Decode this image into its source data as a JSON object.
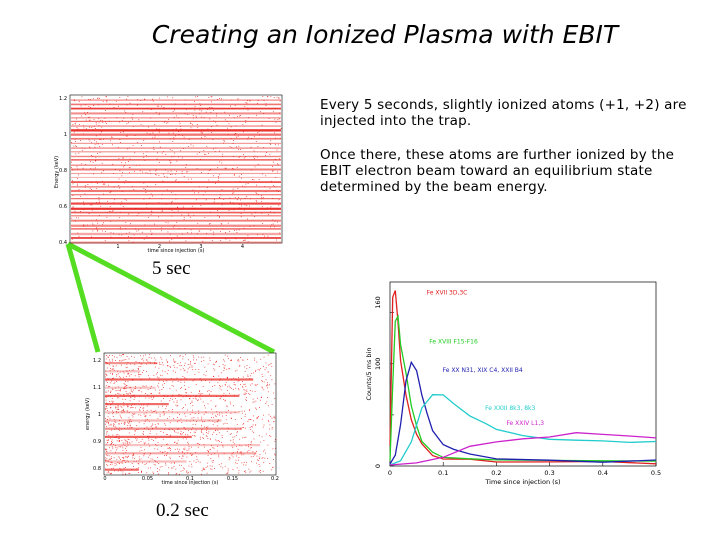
{
  "slide": {
    "title": "Creating an Ionized Plasma with EBIT",
    "paragraph1": "Every 5 seconds, slightly ionized atoms (+1, +2) are injected into the trap.",
    "paragraph2": "Once there, these atoms are further ionized by the EBIT electron beam toward an equilibrium state determined by the beam energy.",
    "label_top": "5 sec",
    "label_bottom": "0.2 sec"
  },
  "top_plot": {
    "ylabel": "Energy (keV)",
    "xlabel": "time since injection (s)",
    "yticks": [
      "1.2",
      "1",
      "0.8",
      "0.6",
      "0.4"
    ],
    "xticks": [
      "1",
      "2",
      "3",
      "4"
    ],
    "color": "#e8201a"
  },
  "bottom_plot": {
    "ylabel": "energy (keV)",
    "xlabel": "time since injection (s)",
    "xticks": [
      "0",
      "0.05",
      "0.1",
      "0.15",
      "0.2"
    ],
    "yticks": [
      "1.2",
      "1.1",
      "1",
      "0.9",
      "0.8"
    ],
    "color": "#e8201a"
  },
  "connector_color": "#55dd22",
  "chart_data": {
    "type": "line",
    "ylabel": "Counts/5 ms bin",
    "xlabel": "Time since injection (s)",
    "xlim": [
      0,
      0.5
    ],
    "ylim": [
      0,
      180
    ],
    "xticks": [
      "0",
      "0.1",
      "0.2",
      "0.3",
      "0.4",
      "0.5"
    ],
    "yticks": [
      "0",
      "50",
      "100",
      "150"
    ],
    "ytick_labels_shown": [
      "0",
      "100",
      "160"
    ],
    "series": [
      {
        "name": "Fe XVII 3D,3C",
        "color": "#e02020",
        "x": [
          0,
          0.005,
          0.01,
          0.015,
          0.02,
          0.03,
          0.04,
          0.05,
          0.06,
          0.08,
          0.1,
          0.15,
          0.2,
          0.3,
          0.4,
          0.5
        ],
        "values": [
          20,
          165,
          170,
          140,
          105,
          70,
          45,
          30,
          20,
          12,
          8,
          5,
          4,
          3,
          3,
          3
        ]
      },
      {
        "name": "Fe XVIII F15-F16",
        "color": "#22cc22",
        "x": [
          0,
          0.005,
          0.01,
          0.015,
          0.02,
          0.03,
          0.04,
          0.05,
          0.06,
          0.08,
          0.1,
          0.15,
          0.2,
          0.3,
          0.4,
          0.5
        ],
        "values": [
          5,
          80,
          140,
          145,
          120,
          90,
          60,
          40,
          25,
          14,
          10,
          6,
          5,
          4,
          4,
          4
        ]
      },
      {
        "name": "Fe XX N31, XIX C4, XXII B4",
        "color": "#2020b0",
        "x": [
          0,
          0.01,
          0.02,
          0.03,
          0.04,
          0.05,
          0.06,
          0.07,
          0.08,
          0.1,
          0.12,
          0.15,
          0.2,
          0.3,
          0.4,
          0.5
        ],
        "values": [
          2,
          10,
          40,
          85,
          100,
          95,
          70,
          50,
          35,
          22,
          15,
          10,
          8,
          6,
          5,
          5
        ]
      },
      {
        "name": "Fe XXIII 8k3, 8k3",
        "color": "#22cccc",
        "x": [
          0,
          0.02,
          0.04,
          0.06,
          0.08,
          0.1,
          0.12,
          0.15,
          0.18,
          0.2,
          0.25,
          0.3,
          0.35,
          0.4,
          0.45,
          0.5
        ],
        "values": [
          1,
          5,
          25,
          55,
          70,
          68,
          60,
          50,
          42,
          35,
          30,
          28,
          26,
          25,
          24,
          22
        ]
      },
      {
        "name": "Fe XXIV L1,3",
        "color": "#cc22cc",
        "x": [
          0,
          0.05,
          0.1,
          0.15,
          0.2,
          0.25,
          0.3,
          0.35,
          0.4,
          0.45,
          0.5
        ],
        "values": [
          1,
          3,
          10,
          20,
          25,
          28,
          30,
          32,
          31,
          30,
          28
        ]
      }
    ]
  }
}
